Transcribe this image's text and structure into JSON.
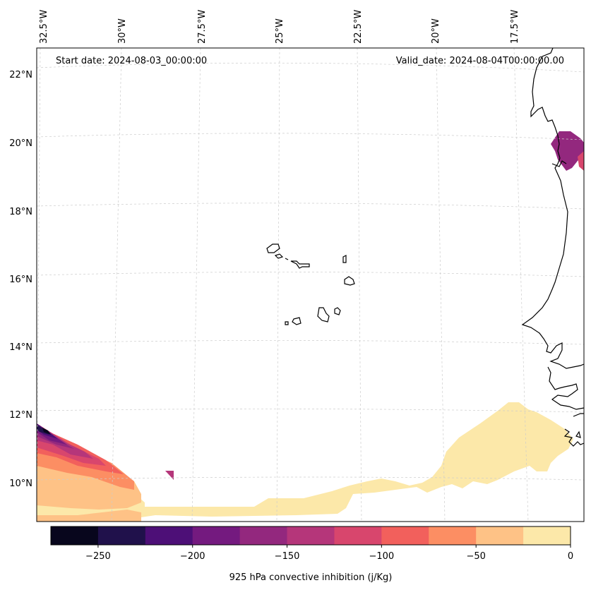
{
  "map": {
    "start_date": "Start date: 2024-08-03_00:00:00",
    "valid_date": "Valid_date: 2024-08-04T00:00:00.00",
    "lon_labels": [
      "32.5°W",
      "30°W",
      "27.5°W",
      "25°W",
      "22.5°W",
      "20°W",
      "17.5°W"
    ],
    "lat_labels": [
      "22°N",
      "20°N",
      "18°N",
      "16°N",
      "14°N",
      "12°N",
      "10°N"
    ],
    "features": [
      "cape-verde-islands",
      "west-africa-coastline",
      "gridlines"
    ]
  },
  "colorbar": {
    "label": "925 hPa convective inhibition (j/Kg)",
    "tick_labels": [
      "−250",
      "−200",
      "−150",
      "−100",
      "−50",
      "0"
    ],
    "levels": [
      -275,
      -250,
      -225,
      -200,
      -175,
      -150,
      -125,
      -100,
      -75,
      -50,
      -25,
      0
    ],
    "colors": [
      "#08061d",
      "#20114b",
      "#4d0f77",
      "#741a7f",
      "#93287e",
      "#b5367a",
      "#d8466d",
      "#f2605c",
      "#fc8e63",
      "#fec286",
      "#fce8a9"
    ]
  },
  "chart_data": {
    "type": "heatmap",
    "title": "925 hPa convective inhibition (j/Kg)",
    "variable": "925 hPa convective inhibition",
    "units": "j/Kg",
    "level_range": [
      -275,
      0
    ],
    "colormap": "magma",
    "regions": [
      {
        "area": "southwest corner",
        "lon_range": [
          -33,
          -30
        ],
        "lat_range": [
          9,
          11.5
        ],
        "cin_range": [
          -275,
          0
        ]
      },
      {
        "area": "southern band",
        "lon_range": [
          -30,
          -15.5
        ],
        "lat_range": [
          9,
          12.5
        ],
        "cin_range": [
          -25,
          0
        ]
      },
      {
        "area": "coast near 19.5N",
        "lon_range": [
          -16.5,
          -16
        ],
        "lat_range": [
          19,
          20.5
        ],
        "cin_range": [
          -175,
          -125
        ]
      }
    ]
  }
}
